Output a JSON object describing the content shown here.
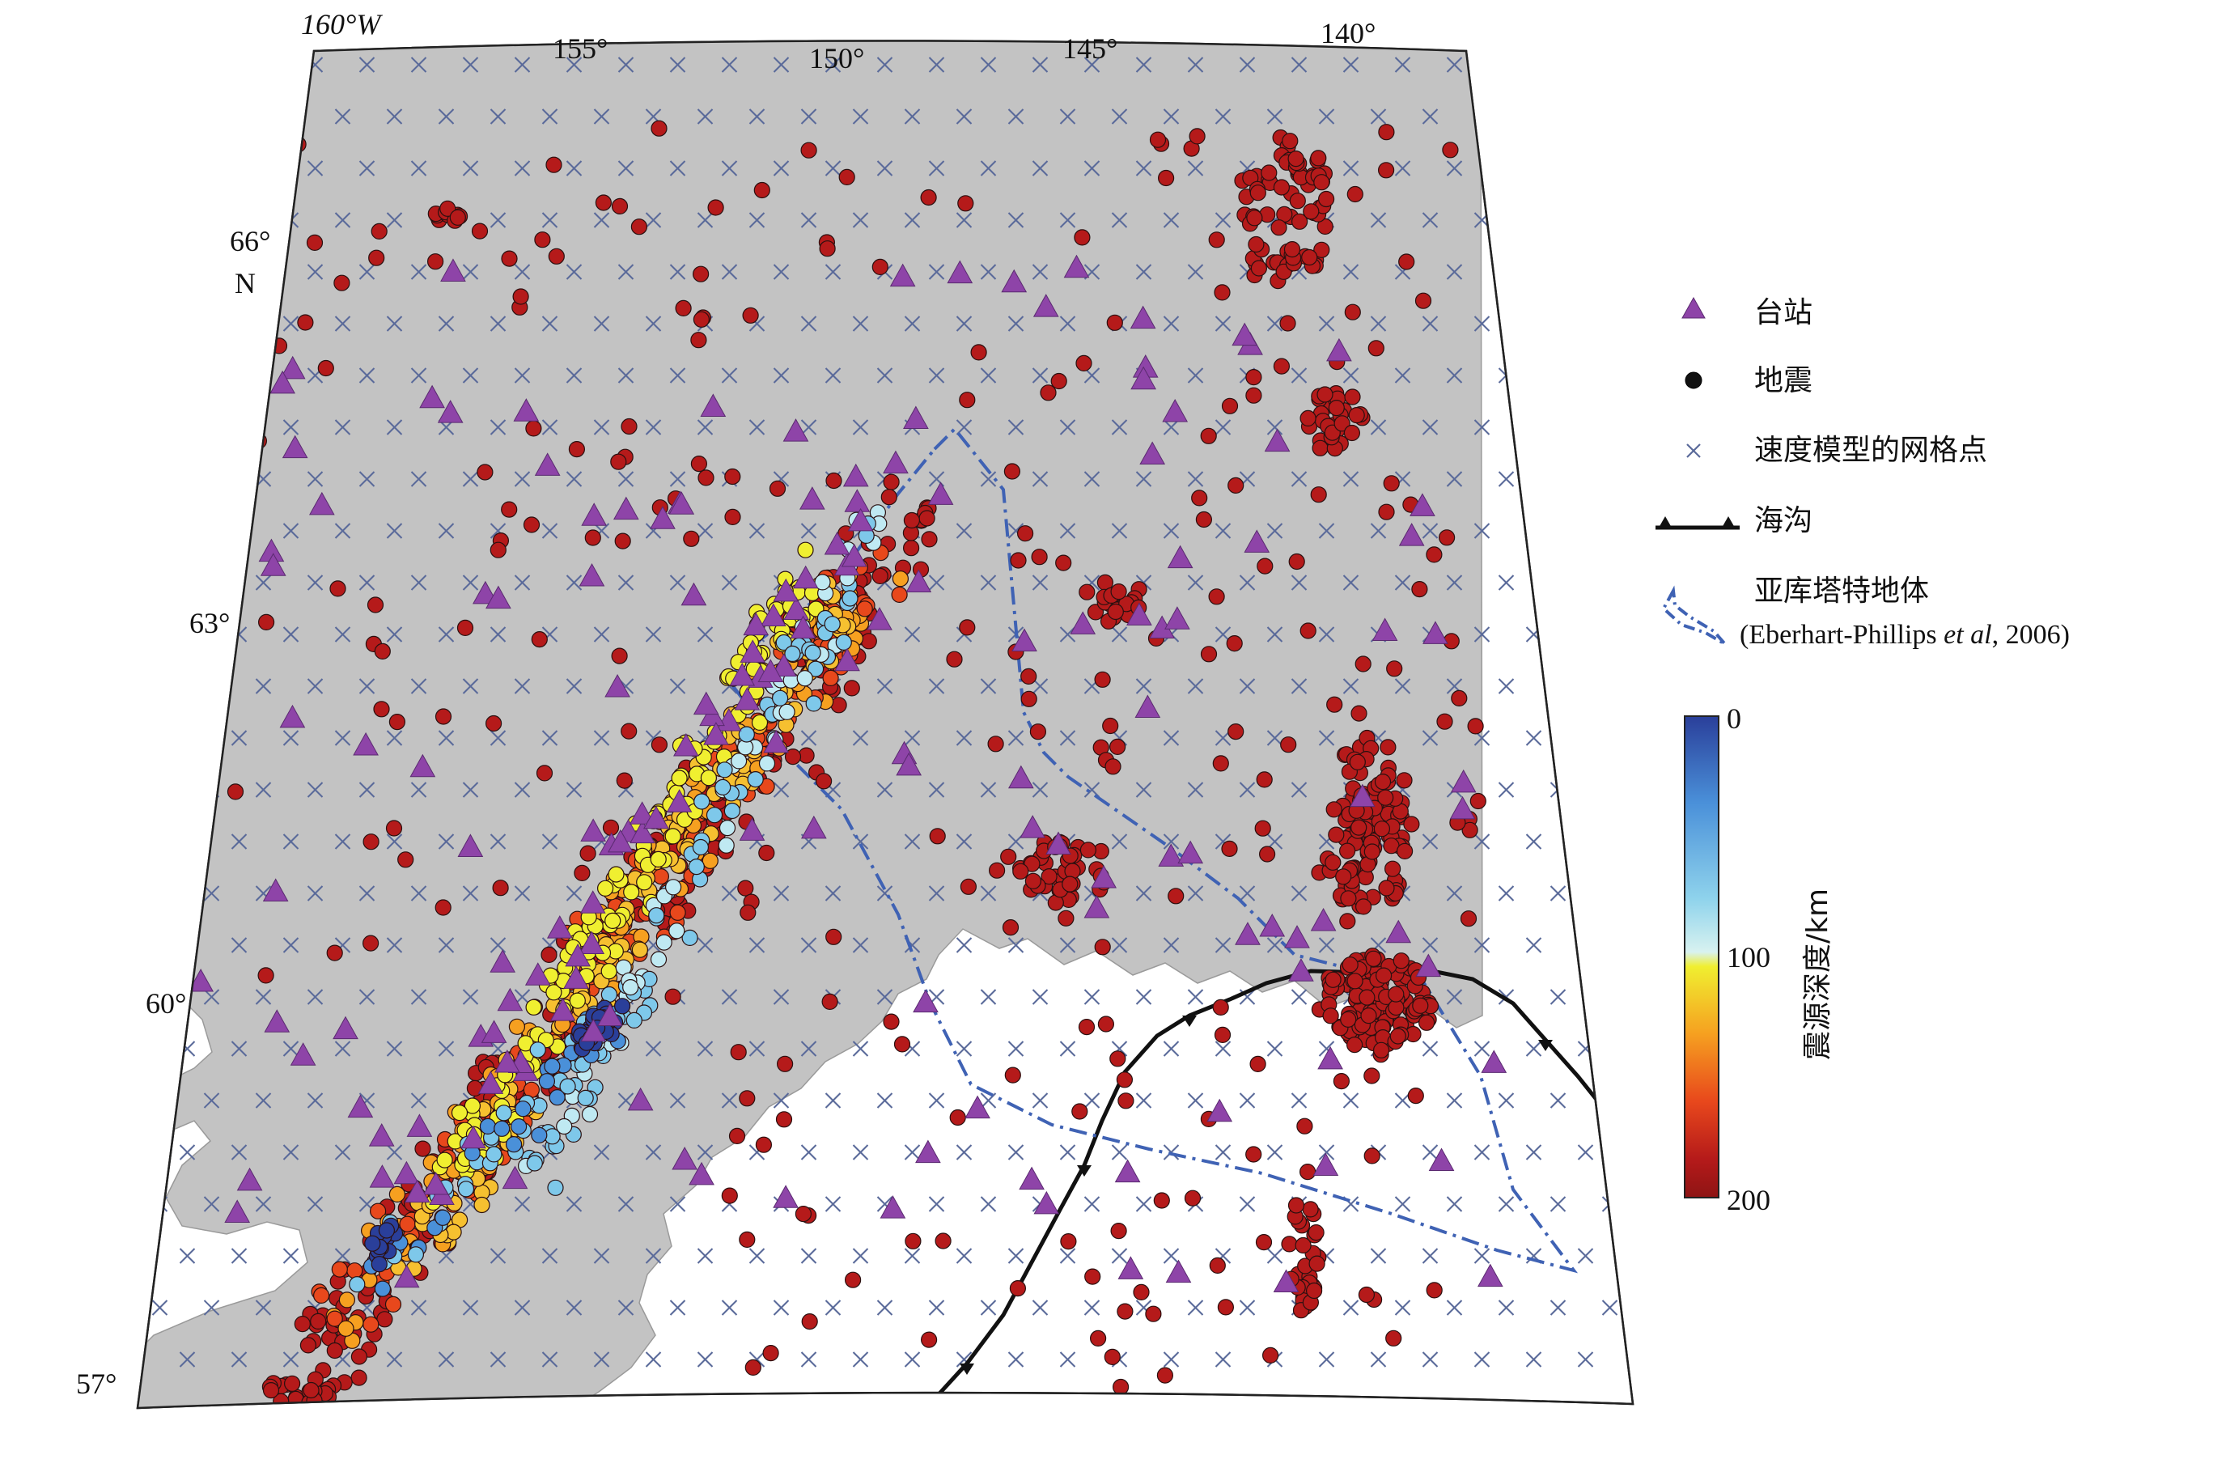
{
  "map": {
    "lon_labels": [
      {
        "text": "160°W",
        "lon": -160
      },
      {
        "text": "155°",
        "lon": -155
      },
      {
        "text": "150°",
        "lon": -150
      },
      {
        "text": "145°",
        "lon": -145
      },
      {
        "text": "140°",
        "lon": -140
      }
    ],
    "lat_labels": [
      {
        "text": "66°",
        "lat": 66,
        "sub": "N"
      },
      {
        "text": "63°",
        "lat": 63,
        "sub": ""
      },
      {
        "text": "60°",
        "lat": 60,
        "sub": ""
      },
      {
        "text": "57°",
        "lat": 57,
        "sub": ""
      }
    ],
    "colors": {
      "land": "#c3c3c3",
      "ocean": "#ffffff",
      "station": "#8e44a8",
      "grid_cross": "#5a6a9a",
      "trench": "#111111",
      "terrane": "#3f62b4"
    }
  },
  "legend": {
    "station_label": "台站",
    "quake_label": "地震",
    "grid_label": "速度模型的网格点",
    "trench_label": "海沟",
    "terrane_label": "亚库塔特地体",
    "terrane_ref_prefix": "(Eberhart-Phillips ",
    "terrane_ref_italic": "et al",
    "terrane_ref_suffix": ", 2006)"
  },
  "colorbar": {
    "title": "震源深度/km",
    "ticks": [
      "0",
      "100",
      "200"
    ],
    "stops": [
      "#2a3f9a",
      "#4a90d9",
      "#8fd3ec",
      "#d8f2f0",
      "#f0ef30",
      "#f6a020",
      "#e8481c",
      "#b51a1a",
      "#8e1414"
    ]
  }
}
